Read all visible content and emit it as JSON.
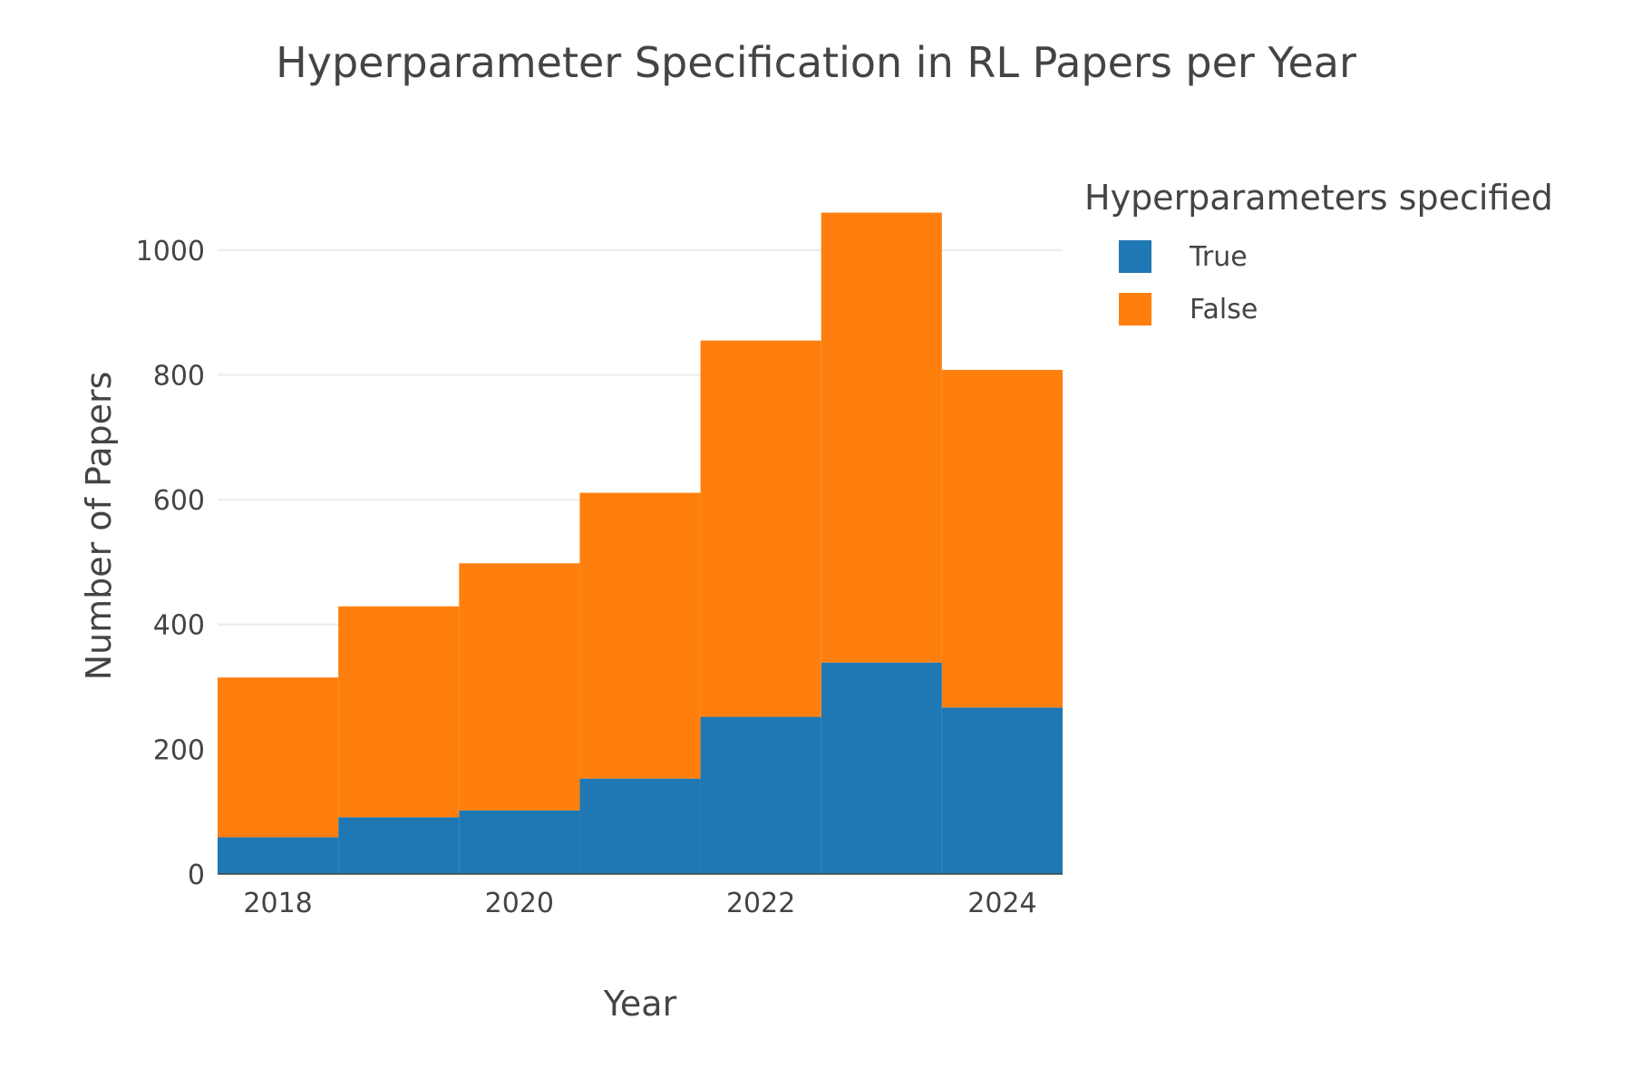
{
  "chart_data": {
    "type": "bar",
    "title": "Hyperparameter Specification in RL Papers per Year",
    "xlabel": "Year",
    "ylabel": "Number of Papers",
    "categories": [
      2018,
      2019,
      2020,
      2021,
      2022,
      2023,
      2024
    ],
    "x_tick_labels": [
      "2018",
      "2020",
      "2022",
      "2024"
    ],
    "y_ticks": [
      0,
      200,
      400,
      600,
      800,
      1000
    ],
    "ylim": [
      0,
      1116
    ],
    "xlim": [
      2017.5,
      2024.5
    ],
    "stacked": true,
    "grid": "y",
    "legend_title": "Hyperparameters specified",
    "legend_position": "right",
    "series": [
      {
        "name": "True",
        "color": "#1f77b4",
        "values": [
          59,
          91,
          102,
          153,
          252,
          339,
          267
        ]
      },
      {
        "name": "False",
        "color": "#ff7f0e",
        "values": [
          256,
          338,
          396,
          458,
          603,
          721,
          541
        ]
      }
    ]
  }
}
